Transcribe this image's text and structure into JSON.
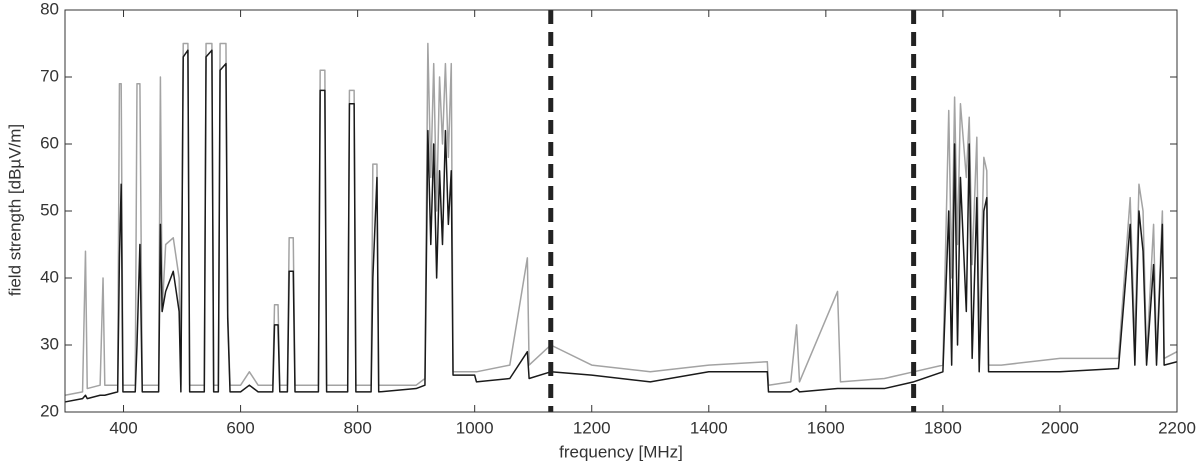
{
  "chart_data": {
    "type": "line",
    "xlabel": "frequency [MHz]",
    "ylabel": "field strength [dBµV/m]",
    "xlim": [
      300,
      2200
    ],
    "ylim": [
      20,
      80
    ],
    "xticks": [
      400,
      600,
      800,
      1000,
      1200,
      1400,
      1600,
      1800,
      2000,
      2200
    ],
    "yticks": [
      20,
      30,
      40,
      50,
      60,
      70,
      80
    ],
    "vlines": [
      1130,
      1750
    ],
    "vline_color": "#222222",
    "x": [
      300,
      330,
      335,
      338,
      360,
      365,
      368,
      390,
      393,
      396,
      399,
      420,
      423,
      428,
      432,
      460,
      463,
      466,
      472,
      485,
      495,
      498,
      502,
      510,
      513,
      538,
      541,
      551,
      554,
      562,
      565,
      575,
      578,
      582,
      600,
      615,
      630,
      655,
      658,
      664,
      667,
      680,
      683,
      690,
      693,
      733,
      736,
      744,
      747,
      783,
      786,
      794,
      797,
      823,
      826,
      833,
      836,
      900,
      915,
      920,
      925,
      930,
      935,
      940,
      945,
      950,
      955,
      960,
      963,
      1000,
      1003,
      1060,
      1090,
      1093,
      1130,
      1200,
      1300,
      1400,
      1500,
      1502,
      1540,
      1550,
      1555,
      1620,
      1625,
      1700,
      1750,
      1800,
      1810,
      1815,
      1820,
      1825,
      1830,
      1840,
      1845,
      1850,
      1858,
      1862,
      1870,
      1875,
      1878,
      1900,
      2000,
      2100,
      2120,
      2128,
      2135,
      2142,
      2148,
      2160,
      2165,
      2175,
      2178,
      2200
    ],
    "series": [
      {
        "color": "#a3a3a3",
        "values": [
          22.5,
          23,
          44,
          23.5,
          24,
          40,
          24,
          24,
          69,
          69,
          24,
          24,
          69,
          69,
          24,
          24,
          70,
          35,
          45,
          46,
          40,
          24,
          75,
          75,
          24,
          24,
          75,
          75,
          24,
          24,
          75,
          75,
          35,
          24,
          24,
          26,
          24,
          24,
          36,
          36,
          24,
          24,
          46,
          46,
          24,
          24,
          71,
          71,
          24,
          24,
          68,
          68,
          24,
          24,
          57,
          57,
          24,
          24,
          25,
          75,
          55,
          72,
          50,
          70,
          60,
          72,
          58,
          72,
          26,
          26,
          26,
          27,
          43,
          27,
          30,
          27,
          26,
          27,
          27.5,
          24,
          24.5,
          33,
          24.5,
          38,
          24.5,
          25,
          26,
          27,
          65,
          40,
          67,
          45,
          66,
          55,
          64,
          42,
          61,
          30,
          58,
          56,
          27,
          27,
          28,
          28,
          52,
          30,
          54,
          50,
          28,
          48,
          28,
          50,
          28,
          29
        ]
      },
      {
        "color": "#1a1a1a",
        "values": [
          21.5,
          22,
          22.5,
          22,
          22.5,
          22.5,
          22.5,
          23,
          43,
          54,
          23,
          23,
          30,
          45,
          23,
          23,
          48,
          35,
          38,
          41,
          35,
          23,
          73,
          74,
          23,
          23,
          73,
          74,
          23,
          23,
          71,
          72,
          34,
          23,
          23,
          24,
          23,
          23,
          33,
          33,
          23,
          23,
          41,
          41,
          23,
          23,
          68,
          68,
          23,
          23,
          66,
          66,
          23,
          23,
          40,
          55,
          23,
          23.5,
          24,
          62,
          45,
          60,
          40,
          56,
          45,
          62,
          48,
          56,
          25.5,
          25.5,
          24.5,
          25,
          29,
          25,
          26,
          25.5,
          24.5,
          26,
          26,
          23,
          23,
          23.5,
          23,
          23.5,
          23.5,
          23.5,
          24.5,
          26,
          50,
          27,
          60,
          30,
          55,
          35,
          60,
          28,
          52,
          26,
          50,
          52,
          26,
          26,
          26,
          26.5,
          48,
          27,
          50,
          44,
          27,
          42,
          27,
          48,
          27,
          27.5
        ]
      }
    ]
  }
}
